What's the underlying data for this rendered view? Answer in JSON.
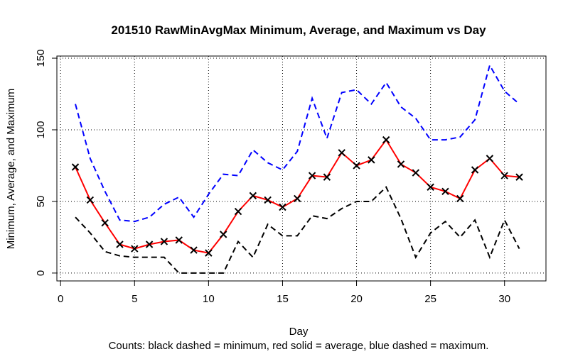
{
  "chart_data": {
    "type": "line",
    "title": "201510 RawMinAvgMax Minimum, Average, and Maximum vs Day",
    "x_label": "Day",
    "y_label": "Minimum, Average, and Maximum",
    "caption": "Counts: black dashed = minimum, red solid = average, blue dashed = maximum.",
    "x": [
      1,
      2,
      3,
      4,
      5,
      6,
      7,
      8,
      9,
      10,
      11,
      12,
      13,
      14,
      15,
      16,
      17,
      18,
      19,
      20,
      21,
      22,
      23,
      24,
      25,
      26,
      27,
      28,
      29,
      30,
      31
    ],
    "series": [
      {
        "name": "minimum",
        "color": "#000000",
        "dash": true,
        "markers": false,
        "values": [
          39,
          28,
          15,
          12,
          11,
          11,
          11,
          0,
          0,
          0,
          0,
          22,
          11,
          34,
          26,
          26,
          40,
          38,
          45,
          50,
          50,
          60,
          38,
          11,
          28,
          36,
          25,
          37,
          11,
          37,
          17
        ]
      },
      {
        "name": "average",
        "color": "#ff0000",
        "dash": false,
        "markers": true,
        "values": [
          74,
          51,
          35,
          20,
          17,
          20,
          22,
          23,
          16,
          14,
          27,
          43,
          54,
          51,
          46,
          52,
          68,
          67,
          84,
          75,
          79,
          93,
          76,
          70,
          60,
          57,
          52,
          72,
          80,
          68,
          67
        ]
      },
      {
        "name": "maximum",
        "color": "#0000ff",
        "dash": true,
        "markers": false,
        "values": [
          118,
          80,
          57,
          37,
          36,
          39,
          48,
          53,
          39,
          55,
          69,
          68,
          86,
          77,
          72,
          85,
          122,
          94,
          126,
          128,
          118,
          133,
          116,
          108,
          93,
          93,
          95,
          107,
          145,
          127,
          118
        ]
      }
    ],
    "xlim": [
      -0.25,
      32.8
    ],
    "ylim": [
      -5.5,
      151.5
    ],
    "xticks": [
      0,
      5,
      10,
      15,
      20,
      25,
      30
    ],
    "yticks": [
      0,
      50,
      100,
      150
    ],
    "grid": true
  }
}
